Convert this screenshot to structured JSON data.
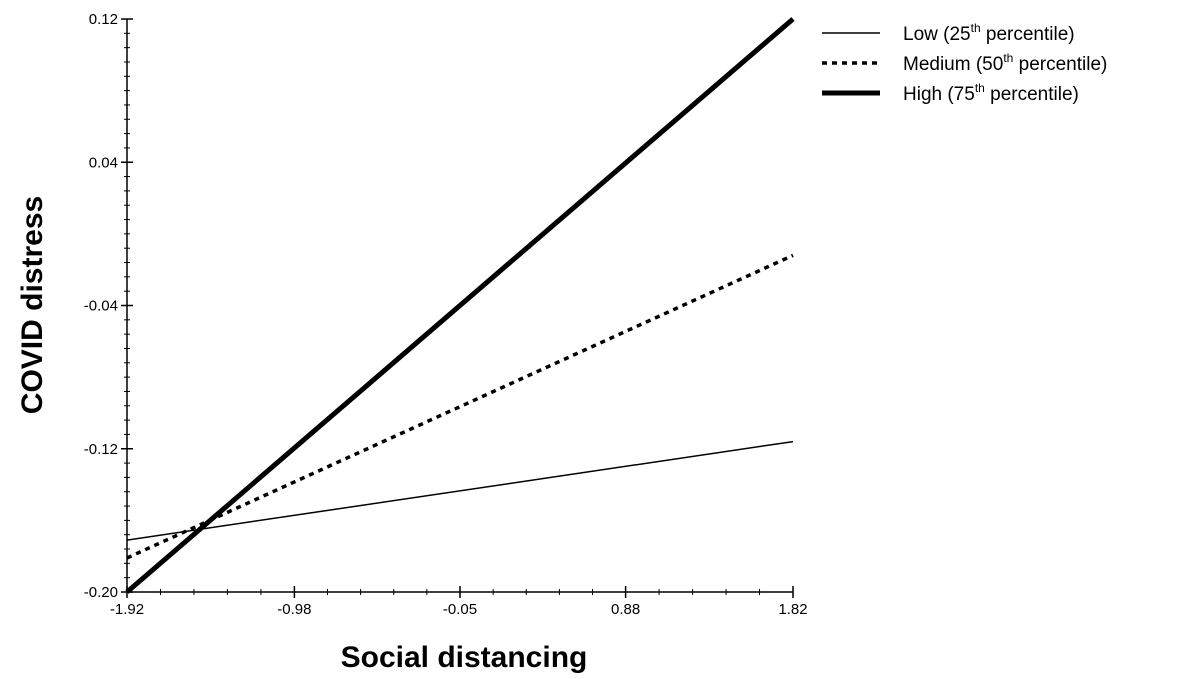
{
  "chart_data": {
    "type": "line",
    "title": "",
    "xlabel": "Social distancing",
    "ylabel": "COVID distress",
    "xlim": [
      -1.92,
      1.82
    ],
    "ylim": [
      -0.2,
      0.12
    ],
    "x_ticks": [
      "-1.92",
      "-0.98",
      "-0.05",
      "0.88",
      "1.82"
    ],
    "y_ticks": [
      "-0.20",
      "-0.12",
      "-0.04",
      "0.04",
      "0.12"
    ],
    "grid": false,
    "legend_position": "top-right",
    "series": [
      {
        "name_main": "Low (25",
        "name_sup": "th",
        "name_tail": " percentile)",
        "style": "thin-solid",
        "x": [
          -1.92,
          1.82
        ],
        "y": [
          -0.171,
          -0.116
        ]
      },
      {
        "name_main": "Medium (50",
        "name_sup": "th",
        "name_tail": " percentile)",
        "style": "dotted",
        "x": [
          -1.92,
          1.82
        ],
        "y": [
          -0.181,
          -0.012
        ]
      },
      {
        "name_main": "High (75",
        "name_sup": "th",
        "name_tail": " percentile)",
        "style": "thick-solid",
        "x": [
          -1.92,
          1.82
        ],
        "y": [
          -0.2,
          0.12
        ]
      }
    ]
  }
}
